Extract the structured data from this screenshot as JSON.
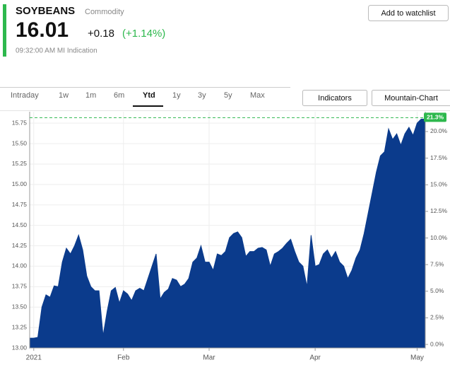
{
  "header": {
    "symbol": "SOYBEANS",
    "kind": "Commodity",
    "price": "16.01",
    "change": "+0.18",
    "change_pct": "(+1.14%)",
    "time": "09:32:00 AM MI Indication",
    "watchlist_button": "Add to watchlist"
  },
  "toolbar": {
    "tabs": [
      "Intraday",
      "1w",
      "1m",
      "6m",
      "Ytd",
      "1y",
      "3y",
      "5y",
      "Max"
    ],
    "selected": "Ytd",
    "buttons": [
      "Indicators",
      "Mountain-Chart"
    ]
  },
  "chart_data": {
    "type": "area",
    "color": "#0b3b8c",
    "grid": true,
    "categories": [
      null,
      "2021",
      null,
      null,
      null,
      null,
      null,
      null,
      null,
      null,
      null,
      null,
      null,
      null,
      null,
      null,
      null,
      null,
      null,
      null,
      null,
      null,
      null,
      "Feb",
      null,
      null,
      null,
      null,
      null,
      null,
      null,
      null,
      null,
      null,
      null,
      null,
      null,
      null,
      null,
      null,
      null,
      null,
      null,
      null,
      "Mar",
      null,
      null,
      null,
      null,
      null,
      null,
      null,
      null,
      null,
      null,
      null,
      null,
      null,
      null,
      null,
      null,
      null,
      null,
      null,
      null,
      null,
      null,
      null,
      null,
      null,
      "Apr",
      null,
      null,
      null,
      null,
      null,
      null,
      null,
      null,
      null,
      null,
      null,
      null,
      null,
      null,
      null,
      null,
      null,
      null,
      null,
      null,
      null,
      null,
      null,
      null,
      "May",
      null,
      null
    ],
    "values": [
      13.12,
      13.12,
      13.13,
      13.5,
      13.65,
      13.62,
      13.76,
      13.75,
      14.05,
      14.22,
      14.15,
      14.25,
      14.38,
      14.2,
      13.88,
      13.75,
      13.7,
      13.7,
      13.15,
      13.45,
      13.7,
      13.74,
      13.55,
      13.7,
      13.66,
      13.58,
      13.7,
      13.73,
      13.7,
      13.85,
      14.0,
      14.15,
      13.6,
      13.68,
      13.72,
      13.85,
      13.83,
      13.75,
      13.78,
      13.85,
      14.05,
      14.1,
      14.25,
      14.05,
      14.05,
      13.95,
      14.15,
      14.13,
      14.18,
      14.35,
      14.4,
      14.42,
      14.35,
      14.12,
      14.18,
      14.18,
      14.22,
      14.23,
      14.2,
      14.0,
      14.15,
      14.18,
      14.22,
      14.28,
      14.33,
      14.18,
      14.05,
      14.0,
      13.75,
      14.38,
      14.0,
      14.02,
      14.15,
      14.2,
      14.1,
      14.18,
      14.05,
      14.0,
      13.85,
      13.95,
      14.1,
      14.2,
      14.4,
      14.65,
      14.9,
      15.15,
      15.35,
      15.4,
      15.68,
      15.55,
      15.62,
      15.48,
      15.62,
      15.7,
      15.6,
      15.75,
      15.8,
      15.8
    ],
    "ylim": [
      13.0,
      15.89
    ],
    "yticks": [
      {
        "value": 13.0,
        "label": "13.00"
      },
      {
        "value": 13.25,
        "label": "13.25"
      },
      {
        "value": 13.5,
        "label": "13.50"
      },
      {
        "value": 13.75,
        "label": "13.75"
      },
      {
        "value": 14.0,
        "label": "14.00"
      },
      {
        "value": 14.25,
        "label": "14.25"
      },
      {
        "value": 14.5,
        "label": "14.50"
      },
      {
        "value": 14.75,
        "label": "14.75"
      },
      {
        "value": 15.0,
        "label": "15.00"
      },
      {
        "value": 15.25,
        "label": "15.25"
      },
      {
        "value": 15.5,
        "label": "15.50"
      },
      {
        "value": 15.75,
        "label": "15.75"
      }
    ],
    "y2lim": [
      -0.33,
      21.86
    ],
    "y2ticks": [
      {
        "value": 0,
        "label": "0.0%"
      },
      {
        "value": 2.5,
        "label": "2.5%"
      },
      {
        "value": 5,
        "label": "5.0%"
      },
      {
        "value": 7.5,
        "label": "7.5%"
      },
      {
        "value": 10,
        "label": "10.0%"
      },
      {
        "value": 12.5,
        "label": "12.5%"
      },
      {
        "value": 15,
        "label": "15.0%"
      },
      {
        "value": 17.5,
        "label": "17.5%"
      },
      {
        "value": 20,
        "label": "20.0%"
      }
    ],
    "current": {
      "value": 21.3,
      "label": "21.3%",
      "axis": "y2",
      "color": "#2db84d"
    }
  }
}
